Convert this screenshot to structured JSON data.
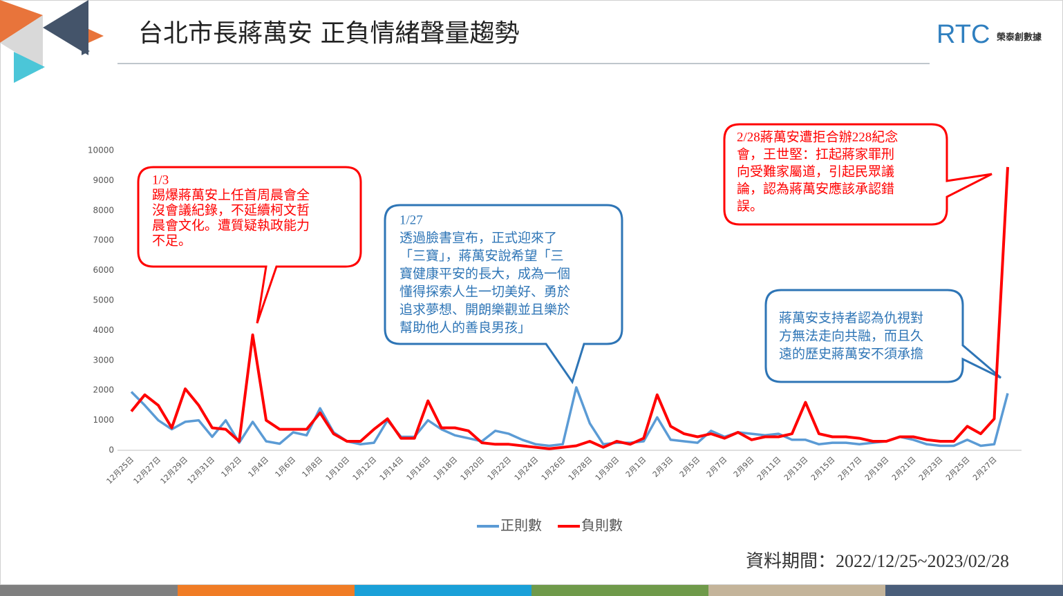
{
  "header": {
    "title": "台北市長蔣萬安 正負情緒聲量趨勢",
    "logo": "RTC",
    "logo_sub": "榮泰創數據"
  },
  "chart_data": {
    "type": "line",
    "categories": [
      "12月25日",
      null,
      "12月27日",
      null,
      "12月29日",
      null,
      "12月31日",
      null,
      "1月2日",
      null,
      "1月4日",
      null,
      "1月6日",
      null,
      "1月8日",
      null,
      "1月10日",
      null,
      "1月12日",
      null,
      "1月14日",
      null,
      "1月16日",
      null,
      "1月18日",
      null,
      "1月20日",
      null,
      "1月22日",
      null,
      "1月24日",
      null,
      "1月26日",
      null,
      "1月28日",
      null,
      "1月30日",
      null,
      "2月1日",
      null,
      "2月3日",
      null,
      "2月5日",
      null,
      "2月7日",
      null,
      "2月9日",
      null,
      "2月11日",
      null,
      "2月13日",
      null,
      "2月15日",
      null,
      "2月17日",
      null,
      "2月19日",
      null,
      "2月21日",
      null,
      "2月23日",
      null,
      "2月25日",
      null,
      "2月27日",
      null
    ],
    "series": [
      {
        "name": "正則數",
        "color": "#5b9bd5",
        "values": [
          1950,
          1500,
          1000,
          700,
          950,
          1000,
          450,
          1000,
          250,
          950,
          300,
          220,
          600,
          500,
          1400,
          600,
          300,
          200,
          250,
          1000,
          450,
          450,
          1000,
          700,
          500,
          400,
          300,
          650,
          550,
          350,
          200,
          150,
          200,
          2100,
          900,
          200,
          250,
          250,
          300,
          1100,
          350,
          300,
          250,
          650,
          450,
          600,
          550,
          500,
          550,
          350,
          350,
          200,
          250,
          250,
          200,
          250,
          300,
          450,
          350,
          200,
          150,
          150,
          350,
          150,
          200,
          1900
        ]
      },
      {
        "name": "負則數",
        "color": "#ff0000",
        "values": [
          1300,
          1850,
          1500,
          750,
          2050,
          1500,
          750,
          700,
          300,
          3850,
          1000,
          700,
          700,
          700,
          1250,
          550,
          300,
          300,
          700,
          1050,
          400,
          400,
          1650,
          750,
          750,
          650,
          250,
          200,
          200,
          150,
          100,
          50,
          100,
          150,
          300,
          100,
          300,
          200,
          400,
          1850,
          800,
          550,
          450,
          550,
          400,
          600,
          350,
          450,
          450,
          550,
          1600,
          550,
          450,
          450,
          400,
          300,
          300,
          450,
          450,
          350,
          300,
          300,
          800,
          550,
          1050,
          9450
        ]
      }
    ],
    "ylim": [
      0,
      10000
    ],
    "yticks": [
      0,
      1000,
      2000,
      3000,
      4000,
      5000,
      6000,
      7000,
      8000,
      9000,
      10000
    ],
    "grid": false,
    "annotations": [
      {
        "lines": [
          "1/3",
          "踢爆蔣萬安上任首周晨會全",
          "沒會議紀錄，不延續柯文哲",
          "晨會文化。遭質疑執政能力",
          "不足。"
        ],
        "color": "#ff0000"
      },
      {
        "lines": [
          "1/27",
          "透過臉書宣布，正式迎來了",
          "「三寶」，蔣萬安說希望「三",
          "寶健康平安的長大，成為一個",
          "懂得探索人生一切美好、勇於",
          "追求夢想、開朗樂觀並且樂於",
          "幫助他人的善良男孩」"
        ],
        "color": "#2e75b6"
      },
      {
        "lines": [
          "蔣萬安支持者認為仇視對",
          "方無法走向共融，而且久",
          "遠的歷史蔣萬安不須承擔"
        ],
        "color": "#2e75b6"
      },
      {
        "lines": [
          "2/28蔣萬安遭拒合辦228紀念",
          "會，王世堅：扛起蔣家罪刑",
          "向受難家屬道，引起民眾議",
          "論，認為蔣萬安應該承認錯",
          "誤。"
        ],
        "color": "#ff0000"
      }
    ],
    "source": "資料期間：2022/12/25~2023/02/28"
  }
}
